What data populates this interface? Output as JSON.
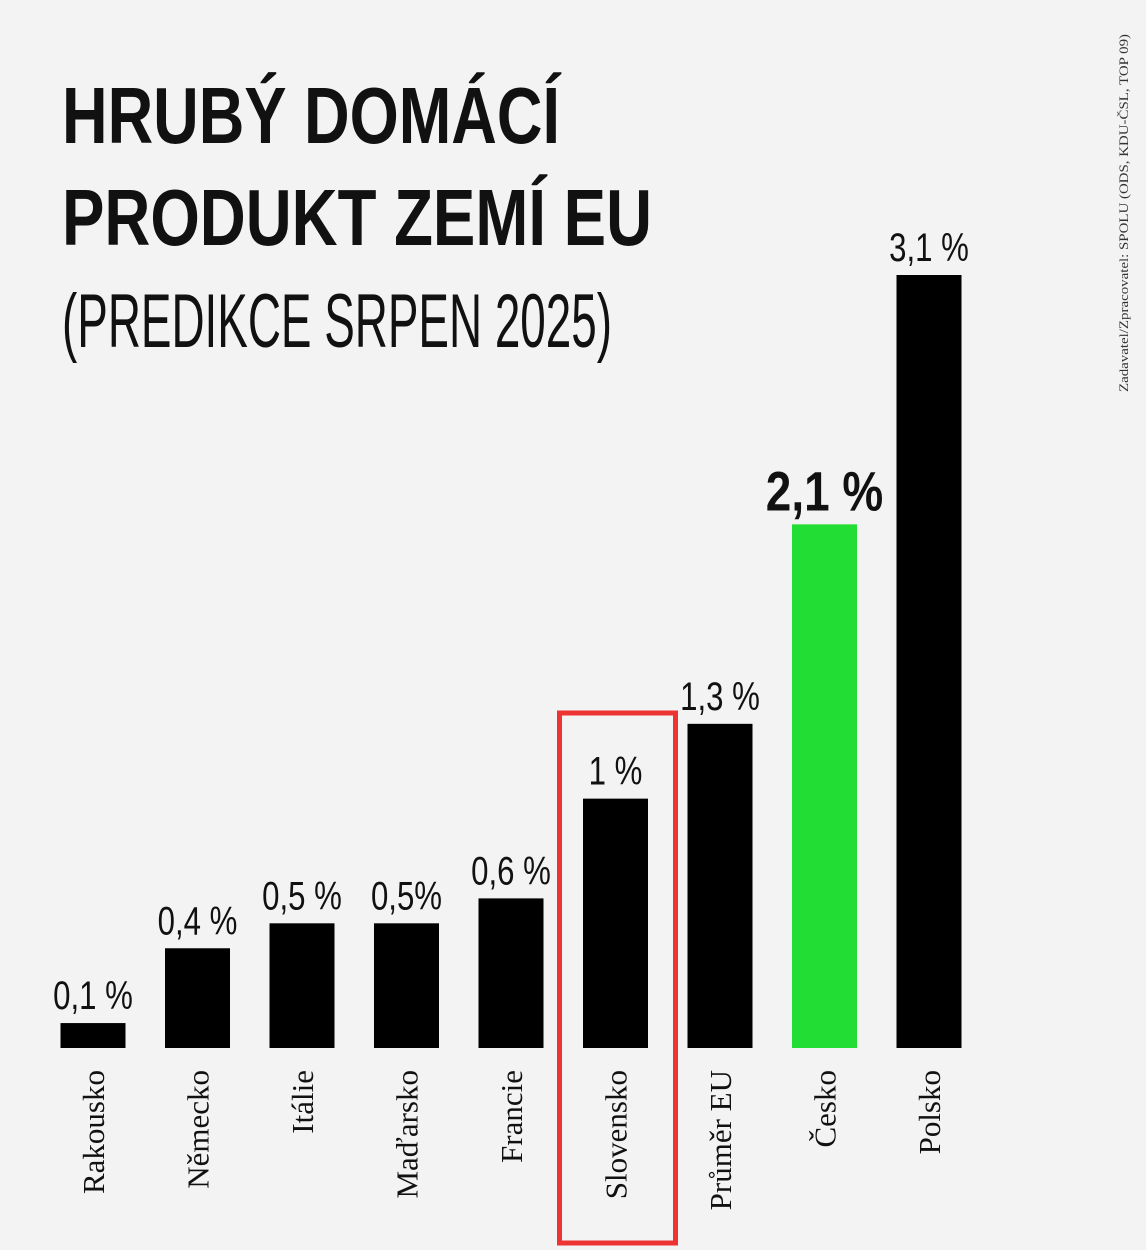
{
  "chart_data": {
    "type": "bar",
    "title": [
      "HRUBÝ DOMÁCÍ",
      "PRODUKT ZEMÍ EU"
    ],
    "subtitle": "(PREDIKCE SRPEN 2025)",
    "source": "Zadavatel/Zpracovatel: SPOLU (ODS, KDU-ČSL, TOP 09)",
    "categories": [
      "Rakousko",
      "Německo",
      "Itálie",
      "Maďarsko",
      "Francie",
      "Slovensko",
      "Průměr EU",
      "Česko",
      "Polsko"
    ],
    "values": [
      0.1,
      0.4,
      0.5,
      0.5,
      0.6,
      1.0,
      1.3,
      2.1,
      3.1
    ],
    "labels": [
      "0,1 %",
      "0,4 %",
      "0,5 %",
      "0,5%",
      "0,6 %",
      "1 %",
      "1,3 %",
      "2,1 %",
      "3,1 %"
    ],
    "unit": "%",
    "xlabel": "",
    "ylabel": "",
    "ylim": [
      0,
      3.1
    ],
    "grid": false,
    "highlight": {
      "category": "Česko",
      "color": "#22dd33"
    },
    "outlined": {
      "category": "Slovensko",
      "color": "#ee3333"
    },
    "bar_color": "#000000"
  }
}
